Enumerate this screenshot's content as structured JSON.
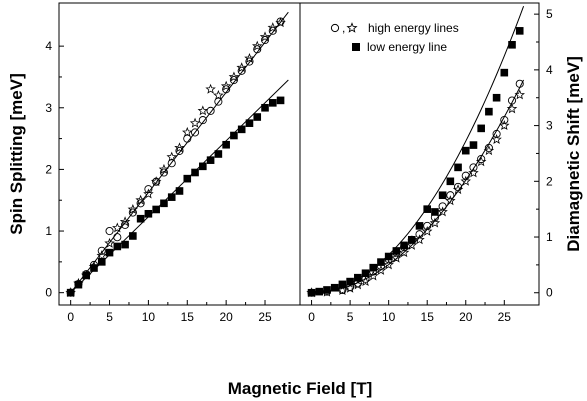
{
  "chart_data": [
    {
      "type": "scatter",
      "panel": "left",
      "xlabel": "Magnetic Field [T]",
      "ylabel": "Spin Splitting [meV]",
      "xlim": [
        -1.5,
        29.5
      ],
      "ylim": [
        -0.2,
        4.7
      ],
      "xticks": [
        0,
        5,
        10,
        15,
        20,
        25
      ],
      "yticks": [
        0,
        1,
        2,
        3,
        4
      ],
      "grid": false,
      "series": [
        {
          "marker": "open-circle",
          "x": [
            0,
            1,
            2,
            3,
            4,
            5,
            6,
            7,
            8,
            9,
            10,
            11,
            12,
            13,
            14,
            15,
            16,
            17,
            18,
            19,
            20,
            21,
            22,
            23,
            24,
            25,
            26,
            27
          ],
          "y": [
            0,
            0.14,
            0.3,
            0.45,
            0.68,
            1.0,
            0.9,
            1.1,
            1.3,
            1.45,
            1.68,
            1.8,
            1.95,
            2.1,
            2.3,
            2.5,
            2.6,
            2.8,
            2.95,
            3.1,
            3.3,
            3.45,
            3.6,
            3.75,
            3.95,
            4.1,
            4.25,
            4.4
          ]
        },
        {
          "marker": "open-star",
          "x": [
            0,
            1,
            2,
            3,
            4,
            5,
            6,
            7,
            8,
            9,
            10,
            11,
            12,
            13,
            14,
            15,
            16,
            17,
            18,
            19,
            20,
            21,
            22,
            23,
            24,
            25,
            26,
            27
          ],
          "y": [
            0,
            0.15,
            0.28,
            0.42,
            0.6,
            0.8,
            1.05,
            1.15,
            1.35,
            1.5,
            1.6,
            1.8,
            2.0,
            2.2,
            2.35,
            2.6,
            2.75,
            2.95,
            3.3,
            3.2,
            3.35,
            3.5,
            3.65,
            3.8,
            4.0,
            4.15,
            4.3,
            4.38
          ]
        },
        {
          "marker": "filled-square",
          "x": [
            0,
            1,
            2,
            3,
            4,
            5,
            6,
            7,
            8,
            9,
            10,
            11,
            12,
            13,
            14,
            15,
            16,
            17,
            18,
            19,
            20,
            21,
            22,
            23,
            24,
            25,
            26,
            27
          ],
          "y": [
            0,
            0.13,
            0.28,
            0.4,
            0.5,
            0.65,
            0.75,
            0.78,
            0.92,
            1.2,
            1.28,
            1.35,
            1.45,
            1.55,
            1.65,
            1.85,
            1.95,
            2.05,
            2.15,
            2.25,
            2.4,
            2.55,
            2.65,
            2.75,
            2.85,
            3.0,
            3.08,
            3.12
          ]
        }
      ],
      "fit_lines": [
        {
          "x": [
            0,
            28
          ],
          "y": [
            0,
            4.55
          ]
        },
        {
          "x": [
            0,
            28
          ],
          "y": [
            0,
            3.45
          ]
        }
      ]
    },
    {
      "type": "scatter",
      "panel": "right",
      "xlabel": "Magnetic Field [T]",
      "ylabel": "Diamagnetic Shift [meV]",
      "xlim": [
        -1.5,
        29.5
      ],
      "ylim": [
        -0.22,
        5.2
      ],
      "xticks": [
        0,
        5,
        10,
        15,
        20,
        25
      ],
      "yticks": [
        0,
        1,
        2,
        3,
        4,
        5
      ],
      "grid": false,
      "legend": {
        "placement": "top-right",
        "entries": [
          {
            "markers": [
              "open-circle",
              "open-star"
            ],
            "separator": ",",
            "label": "high energy lines"
          },
          {
            "markers": [
              "filled-square"
            ],
            "label": "low energy line"
          }
        ]
      },
      "series": [
        {
          "marker": "open-circle",
          "x": [
            0,
            2,
            4,
            5,
            6,
            7,
            8,
            9,
            10,
            11,
            12,
            13,
            14,
            15,
            16,
            17,
            18,
            19,
            20,
            21,
            22,
            23,
            24,
            25,
            26,
            27
          ],
          "y": [
            0,
            0.02,
            0.05,
            0.1,
            0.17,
            0.25,
            0.38,
            0.48,
            0.6,
            0.72,
            0.82,
            0.95,
            1.05,
            1.2,
            1.35,
            1.55,
            1.75,
            1.9,
            2.1,
            2.25,
            2.4,
            2.6,
            2.85,
            3.1,
            3.45,
            3.75
          ]
        },
        {
          "marker": "open-star",
          "x": [
            0,
            2,
            4,
            5,
            6,
            7,
            8,
            9,
            10,
            11,
            12,
            13,
            14,
            15,
            16,
            17,
            18,
            19,
            20,
            21,
            22,
            23,
            24,
            25,
            26,
            27
          ],
          "y": [
            0,
            0.01,
            0.04,
            0.08,
            0.14,
            0.2,
            0.3,
            0.4,
            0.5,
            0.62,
            0.72,
            0.85,
            0.95,
            1.1,
            1.25,
            1.45,
            1.65,
            1.85,
            2.0,
            2.15,
            2.35,
            2.55,
            2.75,
            3.0,
            3.3,
            3.55
          ]
        },
        {
          "marker": "filled-square",
          "x": [
            0,
            1,
            2,
            3,
            4,
            5,
            6,
            7,
            8,
            9,
            10,
            11,
            12,
            13,
            14,
            15,
            16,
            17,
            18,
            19,
            20,
            21,
            22,
            23,
            24,
            25,
            26,
            27
          ],
          "y": [
            0,
            0.02,
            0.05,
            0.09,
            0.15,
            0.2,
            0.27,
            0.35,
            0.45,
            0.55,
            0.65,
            0.75,
            0.85,
            0.95,
            1.2,
            1.5,
            1.45,
            1.75,
            2.0,
            2.25,
            2.55,
            2.65,
            2.95,
            3.25,
            3.5,
            3.95,
            4.45,
            4.7
          ]
        }
      ],
      "fit_lines": [
        {
          "form": "a*B^2",
          "coef": 0.0068,
          "xmax": 27.5
        },
        {
          "form": "a*B^2",
          "coef": 0.00505,
          "xmax": 27.5
        }
      ]
    }
  ]
}
